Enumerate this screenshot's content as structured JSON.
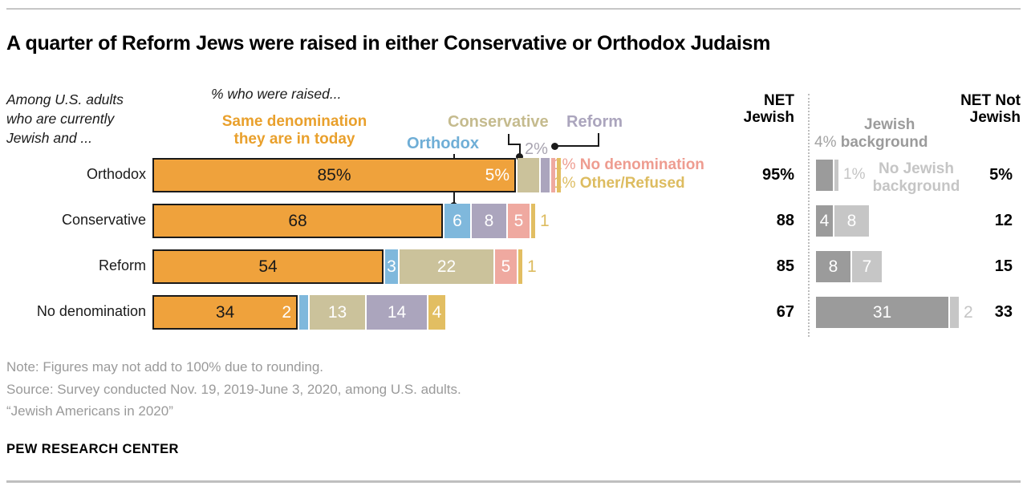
{
  "page": {
    "title": "A quarter of Reform Jews were raised in either Conservative or Orthodox Judaism",
    "intro": "Among U.S. adults who are currently Jewish and ...",
    "axis_note": "% who were raised...",
    "note_line1": "Note: Figures may not add to 100% due to rounding.",
    "note_line2": "Source: Survey conducted Nov. 19, 2019-June 3, 2020, among U.S. adults.",
    "note_line3": "“Jewish Americans in 2020”",
    "footer": "PEW RESEARCH CENTER"
  },
  "legend": {
    "same_denomination": "Same denomination they are in today",
    "orthodox": "Orthodox",
    "conservative": "Conservative",
    "reform": "Reform",
    "reform_value": "2%",
    "no_denomination_value": "1%",
    "no_denomination": "No denomination",
    "other_refused_value": "1%",
    "other_refused": "Other/Refused"
  },
  "right_panel": {
    "net_jewish_header": "NET Jewish",
    "net_not_jewish_header": "NET Not Jewish",
    "jewish_background_word1": "Jewish",
    "jewish_background_value": "4%",
    "jewish_background_word2": "background",
    "no_jewish_background_value": "1%",
    "no_jewish_background": "No Jewish background"
  },
  "colors": {
    "same": "#EFA23C",
    "orthodox": "#7FB8DC",
    "conservative": "#CBC29B",
    "reform": "#ABA5BD",
    "nodenom": "#EFA9A0",
    "other": "#E2BE62",
    "dark": "#9B9B9B",
    "light": "#C6C6C6",
    "orange_text": "#E9A02C",
    "blue_text": "#6FAED6",
    "tan_text": "#C5BB8E",
    "purple_text": "#ABA5BD",
    "salmon_text": "#EE9C90",
    "gold_text": "#DDBC60",
    "gray2pct_text": "#A8A4B0",
    "dark_gray_text": "#9B9B9B",
    "light_gray_text": "#C5C5C5"
  },
  "rows": [
    {
      "label": "Orthodox",
      "net_jewish": "95%",
      "net_not_jewish": "5%",
      "segments": [
        {
          "v": 85,
          "c": "same",
          "label": "85%",
          "outlined": true,
          "end_label": "5%"
        },
        {
          "v": 5,
          "c": "conservative"
        },
        {
          "v": 2,
          "c": "reform"
        },
        {
          "v": 1,
          "c": "nodenom"
        },
        {
          "v": 1,
          "c": "other"
        }
      ],
      "right_segments": [
        {
          "v": 4,
          "c": "dark"
        },
        {
          "v": 1,
          "c": "light"
        }
      ]
    },
    {
      "label": "Conservative",
      "net_jewish": "88",
      "net_not_jewish": "12",
      "segments": [
        {
          "v": 68,
          "c": "same",
          "label": "68",
          "outlined": true
        },
        {
          "v": 6,
          "c": "orthodox",
          "label": "6"
        },
        {
          "v": 8,
          "c": "reform",
          "label": "8"
        },
        {
          "v": 5,
          "c": "nodenom",
          "label": "5"
        },
        {
          "v": 1,
          "c": "other",
          "out_label": "1"
        }
      ],
      "right_segments": [
        {
          "v": 4,
          "c": "dark",
          "label": "4"
        },
        {
          "v": 8,
          "c": "light",
          "label": "8"
        }
      ]
    },
    {
      "label": "Reform",
      "net_jewish": "85",
      "net_not_jewish": "15",
      "segments": [
        {
          "v": 54,
          "c": "same",
          "label": "54",
          "outlined": true
        },
        {
          "v": 3,
          "c": "orthodox",
          "label": "3"
        },
        {
          "v": 22,
          "c": "conservative",
          "label": "22"
        },
        {
          "v": 5,
          "c": "nodenom",
          "label": "5"
        },
        {
          "v": 1,
          "c": "other",
          "out_label": "1"
        }
      ],
      "right_segments": [
        {
          "v": 8,
          "c": "dark",
          "label": "8"
        },
        {
          "v": 7,
          "c": "light",
          "label": "7"
        }
      ]
    },
    {
      "label": "No denomination",
      "net_jewish": "67",
      "net_not_jewish": "33",
      "segments": [
        {
          "v": 34,
          "c": "same",
          "label": "34",
          "outlined": true,
          "end_label": "2"
        },
        {
          "v": 2,
          "c": "orthodox"
        },
        {
          "v": 13,
          "c": "conservative",
          "label": "13"
        },
        {
          "v": 14,
          "c": "reform",
          "label": "14"
        },
        {
          "v": 4,
          "c": "other",
          "label": "4"
        }
      ],
      "right_segments": [
        {
          "v": 31,
          "c": "dark",
          "label": "31"
        },
        {
          "v": 2,
          "c": "light",
          "out_label": "2"
        }
      ]
    }
  ],
  "chart_data": {
    "type": "bar",
    "subtype": "horizontal-stacked",
    "title": "A quarter of Reform Jews were raised in either Conservative or Orthodox Judaism",
    "population_note": "Among U.S. adults who are currently Jewish and ...",
    "value_note": "% who were raised...",
    "categories": [
      "Orthodox",
      "Conservative",
      "Reform",
      "No denomination"
    ],
    "series": [
      {
        "name": "Same denomination they are in today",
        "color": "#EFA23C",
        "values": [
          85,
          68,
          54,
          34
        ]
      },
      {
        "name": "Orthodox",
        "color": "#7FB8DC",
        "values": [
          null,
          6,
          3,
          2
        ]
      },
      {
        "name": "Conservative",
        "color": "#CBC29B",
        "values": [
          5,
          null,
          22,
          13
        ]
      },
      {
        "name": "Reform",
        "color": "#ABA5BD",
        "values": [
          2,
          8,
          null,
          14
        ]
      },
      {
        "name": "No denomination",
        "color": "#EFA9A0",
        "values": [
          1,
          5,
          5,
          null
        ]
      },
      {
        "name": "Other/Refused",
        "color": "#E2BE62",
        "values": [
          1,
          1,
          1,
          4
        ]
      },
      {
        "name": "Jewish background",
        "color": "#9B9B9B",
        "values": [
          4,
          4,
          8,
          31
        ]
      },
      {
        "name": "No Jewish background",
        "color": "#C6C6C6",
        "values": [
          1,
          8,
          7,
          2
        ]
      }
    ],
    "net_jewish": {
      "label": "NET Jewish",
      "values": [
        "95%",
        "88",
        "85",
        "67"
      ]
    },
    "net_not_jewish": {
      "label": "NET Not Jewish",
      "values": [
        "5%",
        "12",
        "15",
        "33"
      ]
    },
    "axis_range_percent": [
      0,
      100
    ],
    "grid": false,
    "legend_position": "top"
  }
}
